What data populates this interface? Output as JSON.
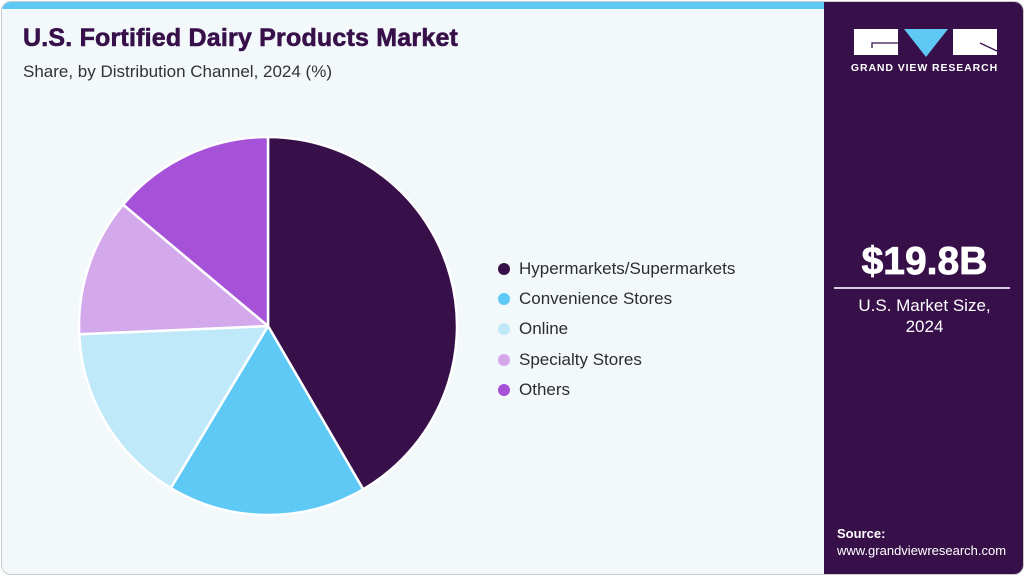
{
  "header": {
    "title": "U.S. Fortified Dairy Products Market",
    "subtitle": "Share, by Distribution Channel, 2024 (%)"
  },
  "brand": {
    "name": "GRAND VIEW RESEARCH",
    "logo_icon": "gvr-logo-icon"
  },
  "highlight": {
    "value": "$19.8B",
    "label_line1": "U.S. Market Size,",
    "label_line2": "2024"
  },
  "source": {
    "title": "Source:",
    "url": "www.grandviewresearch.com"
  },
  "colors": {
    "accent_bar": "#5ec9f5",
    "panel_bg": "#37104a",
    "chart_bg": "#f3f8fb",
    "title_color": "#37104a"
  },
  "legend": {
    "items": [
      {
        "label": "Hypermarkets/Supermarkets",
        "color": "#37104a"
      },
      {
        "label": "Convenience Stores",
        "color": "#5ec9f5"
      },
      {
        "label": "Online",
        "color": "#bfe9f9"
      },
      {
        "label": "Specialty Stores",
        "color": "#d4a9ec"
      },
      {
        "label": "Others",
        "color": "#a652d8"
      }
    ]
  },
  "chart_data": {
    "type": "pie",
    "title": "U.S. Fortified Dairy Products Market",
    "subtitle": "Share, by Distribution Channel, 2024 (%)",
    "categories": [
      "Hypermarkets/Supermarkets",
      "Convenience Stores",
      "Online",
      "Specialty Stores",
      "Others"
    ],
    "values": [
      41.6,
      17.0,
      15.7,
      11.8,
      13.9
    ],
    "colors": [
      "#37104a",
      "#5ec9f5",
      "#bfe9f9",
      "#d4a9ec",
      "#a652d8"
    ],
    "start_angle_deg": 0,
    "direction": "clockwise",
    "legend_position": "right",
    "unit": "%"
  }
}
